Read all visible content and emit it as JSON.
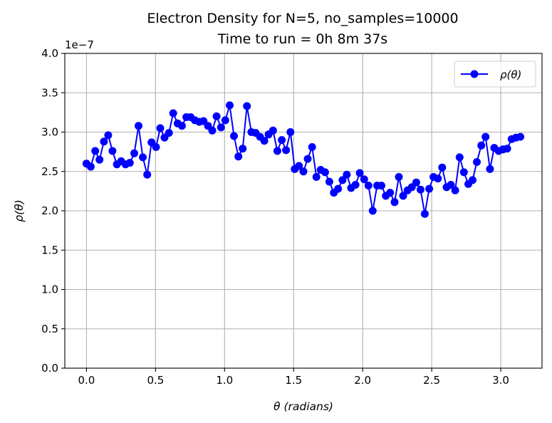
{
  "chart_data": {
    "type": "line",
    "title_line1": "Electron Density for N=5, no_samples=10000",
    "title_line2": "Time to run = 0h 8m 37s",
    "xlabel": "θ (radians)",
    "ylabel": "ρ(θ)",
    "y_offset_label": "1e−7",
    "y_scale": 1e-07,
    "xlim": [
      -0.157,
      3.299
    ],
    "ylim": [
      0.0,
      4.0
    ],
    "x_ticks": [
      0.0,
      0.5,
      1.0,
      1.5,
      2.0,
      2.5,
      3.0
    ],
    "x_tick_labels": [
      "0.0",
      "0.5",
      "1.0",
      "1.5",
      "2.0",
      "2.5",
      "3.0"
    ],
    "y_ticks": [
      0.0,
      0.5,
      1.0,
      1.5,
      2.0,
      2.5,
      3.0,
      3.5,
      4.0
    ],
    "y_tick_labels": [
      "0.0",
      "0.5",
      "1.0",
      "1.5",
      "2.0",
      "2.5",
      "3.0",
      "3.5",
      "4.0"
    ],
    "grid": true,
    "legend_position": "top-right",
    "series": [
      {
        "name": "ρ(θ)",
        "color": "#0000ff",
        "marker": "circle",
        "x": [
          0.0,
          0.031,
          0.063,
          0.094,
          0.126,
          0.157,
          0.188,
          0.22,
          0.251,
          0.283,
          0.314,
          0.346,
          0.377,
          0.408,
          0.44,
          0.471,
          0.503,
          0.534,
          0.565,
          0.597,
          0.628,
          0.66,
          0.691,
          0.723,
          0.754,
          0.785,
          0.817,
          0.848,
          0.88,
          0.911,
          0.942,
          0.974,
          1.005,
          1.037,
          1.068,
          1.1,
          1.131,
          1.162,
          1.194,
          1.225,
          1.257,
          1.288,
          1.319,
          1.351,
          1.382,
          1.414,
          1.445,
          1.477,
          1.508,
          1.539,
          1.571,
          1.602,
          1.634,
          1.665,
          1.696,
          1.728,
          1.759,
          1.791,
          1.822,
          1.854,
          1.885,
          1.916,
          1.948,
          1.979,
          2.011,
          2.042,
          2.073,
          2.105,
          2.136,
          2.168,
          2.199,
          2.231,
          2.262,
          2.293,
          2.325,
          2.356,
          2.388,
          2.419,
          2.45,
          2.482,
          2.513,
          2.545,
          2.576,
          2.608,
          2.639,
          2.67,
          2.702,
          2.733,
          2.765,
          2.796,
          2.827,
          2.859,
          2.89,
          2.922,
          2.953,
          2.985,
          3.016,
          3.047,
          3.079,
          3.11,
          3.142
        ],
        "y": [
          2.6,
          2.56,
          2.76,
          2.65,
          2.88,
          2.96,
          2.76,
          2.59,
          2.63,
          2.59,
          2.61,
          2.73,
          3.08,
          2.68,
          2.46,
          2.87,
          2.81,
          3.05,
          2.93,
          2.99,
          3.24,
          3.11,
          3.08,
          3.19,
          3.19,
          3.15,
          3.13,
          3.14,
          3.08,
          3.02,
          3.2,
          3.06,
          3.15,
          3.34,
          2.95,
          2.69,
          2.79,
          3.33,
          3.0,
          2.99,
          2.94,
          2.89,
          2.97,
          3.02,
          2.76,
          2.9,
          2.77,
          3.0,
          2.53,
          2.57,
          2.5,
          2.66,
          2.81,
          2.43,
          2.52,
          2.49,
          2.37,
          2.23,
          2.28,
          2.39,
          2.46,
          2.29,
          2.33,
          2.48,
          2.4,
          2.32,
          2.0,
          2.32,
          2.32,
          2.19,
          2.23,
          2.11,
          2.43,
          2.19,
          2.26,
          2.3,
          2.36,
          2.27,
          1.96,
          2.28,
          2.43,
          2.41,
          2.55,
          2.3,
          2.33,
          2.26,
          2.68,
          2.49,
          2.34,
          2.39,
          2.62,
          2.83,
          2.94,
          2.53,
          2.8,
          2.76,
          2.78,
          2.79,
          2.91,
          2.93,
          2.94
        ]
      }
    ]
  }
}
